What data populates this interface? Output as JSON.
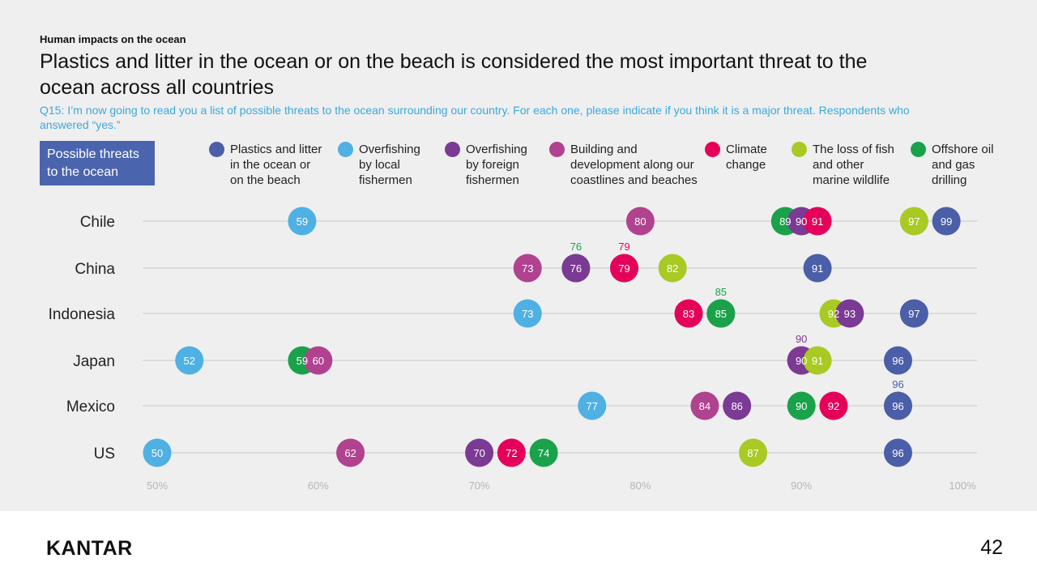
{
  "header": {
    "eyebrow": "Human impacts on the ocean",
    "title": "Plastics and litter in the ocean or on the beach is considered the most important threat to the ocean across all countries",
    "subtitle": "Q15: I’m now going to read you a list of possible threats to the ocean surrounding our country. For each one, please indicate if you think it is a major threat. Respondents who answered “yes.”",
    "possible_label": "Possible threats to the ocean"
  },
  "footer": {
    "logo": "KANTAR",
    "page_number": "42"
  },
  "chart_data": {
    "type": "scatter",
    "xlim": [
      50,
      100
    ],
    "xticks": [
      "50%",
      "60%",
      "70%",
      "80%",
      "90%",
      "100%"
    ],
    "categories": [
      "Chile",
      "China",
      "Indonesia",
      "Japan",
      "Mexico",
      "US"
    ],
    "series": [
      {
        "name": "Plastics and litter in the ocean or on the beach",
        "color": "#4b5ea8",
        "values": [
          99,
          91,
          97,
          96,
          96,
          96
        ]
      },
      {
        "name": "Overfishing by local fishermen",
        "color": "#4fb0e3",
        "values": [
          59,
          79,
          73,
          52,
          77,
          50
        ]
      },
      {
        "name": "Overfishing by foreign fishermen",
        "color": "#7b3a93",
        "values": [
          90,
          76,
          93,
          90,
          86,
          70
        ]
      },
      {
        "name": "Building and development along our coastlines and beaches",
        "color": "#b0428f",
        "values": [
          80,
          73,
          85,
          60,
          84,
          62
        ]
      },
      {
        "name": "Climate change",
        "color": "#e5005a",
        "values": [
          91,
          79,
          83,
          90,
          92,
          72
        ]
      },
      {
        "name": "The loss of fish and other marine wildlife",
        "color": "#a9c924",
        "values": [
          97,
          82,
          92,
          91,
          96,
          87
        ]
      },
      {
        "name": "Offshore oil and gas drilling",
        "color": "#1aa24a",
        "values": [
          89,
          76,
          85,
          59,
          90,
          74
        ]
      }
    ],
    "annotations": [
      {
        "category": "China",
        "series": "Offshore oil and gas drilling",
        "value": "76",
        "color": "#1aa24a"
      },
      {
        "category": "China",
        "series": "Climate change",
        "value": "79",
        "color": "#e5005a"
      },
      {
        "category": "Indonesia",
        "series": "Offshore oil and gas drilling",
        "value": "85",
        "color": "#1aa24a"
      },
      {
        "category": "Japan",
        "series": "Overfishing by foreign fishermen",
        "value": "90",
        "color": "#7b3a93"
      },
      {
        "category": "Mexico",
        "series": "Plastics and litter in the ocean or on the beach",
        "value": "96",
        "color": "#4b5ea8"
      }
    ]
  },
  "legend": [
    {
      "label_lines": [
        "Plastics and litter",
        "in the ocean or",
        "on the beach"
      ],
      "color": "#4b5ea8",
      "icon": "circle-icon"
    },
    {
      "label_lines": [
        "Overfishing",
        "by local",
        "fishermen"
      ],
      "color": "#4fb0e3",
      "icon": "circle-icon"
    },
    {
      "label_lines": [
        "Overfishing",
        "by foreign",
        "fishermen"
      ],
      "color": "#7b3a93",
      "icon": "circle-icon"
    },
    {
      "label_lines": [
        "Building and",
        "development along our",
        "coastlines and beaches"
      ],
      "color": "#b0428f",
      "icon": "circle-icon"
    },
    {
      "label_lines": [
        "Climate",
        "change"
      ],
      "color": "#e5005a",
      "icon": "circle-icon"
    },
    {
      "label_lines": [
        "The loss of fish",
        "and other",
        "marine wildlife"
      ],
      "color": "#a9c924",
      "icon": "circle-icon"
    },
    {
      "label_lines": [
        "Offshore oil",
        "and gas",
        "drilling"
      ],
      "color": "#1aa24a",
      "icon": "circle-icon"
    }
  ]
}
